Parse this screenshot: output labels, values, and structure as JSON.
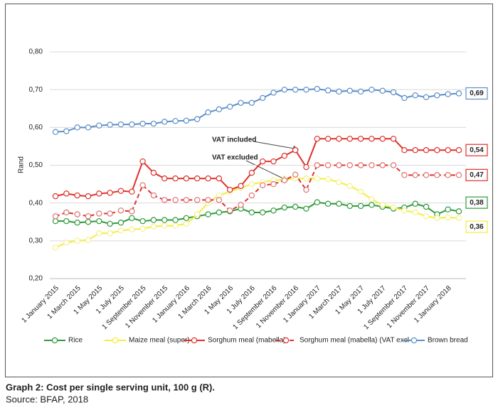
{
  "chart_data": {
    "type": "line",
    "y_label": "Rand",
    "caption": "Graph 2: Cost per single serving unit, 100 g (R).",
    "source": "Source: BFAP, 2018",
    "annotations": [
      "VAT included",
      "VAT excluded"
    ],
    "categories": [
      "1 January 2015",
      null,
      "1 March 2015",
      null,
      "1 May 2015",
      null,
      "1 July 2015",
      null,
      "1 September 2015",
      null,
      "1 November 2015",
      null,
      "1 January 2016",
      null,
      "1 March 2016",
      null,
      "1 May 2016",
      null,
      "1 July 2016",
      null,
      "1 September 2016",
      null,
      "1 November 2016",
      null,
      "1 January 2017",
      null,
      "1 March 2017",
      null,
      "1 May 2017",
      null,
      "1 July 2017",
      null,
      "1 September 2017",
      null,
      "1 November 2017",
      null,
      "1 January 2018",
      null
    ],
    "ylim": [
      0.2,
      0.8
    ],
    "yticks": [
      {
        "value": 0.2,
        "label": "0,20"
      },
      {
        "value": 0.3,
        "label": "0,30"
      },
      {
        "value": 0.4,
        "label": "0,40"
      },
      {
        "value": 0.5,
        "label": "0,50"
      },
      {
        "value": 0.6,
        "label": "0,60"
      },
      {
        "value": 0.7,
        "label": "0,70"
      },
      {
        "value": 0.8,
        "label": "0,80"
      }
    ],
    "grid": true,
    "legend": "bottom",
    "series": [
      {
        "name": "Rice",
        "color": "#2e9a3a",
        "dashed": false,
        "values": [
          0.352,
          0.352,
          0.348,
          0.35,
          0.352,
          0.345,
          0.348,
          0.36,
          0.352,
          0.355,
          0.355,
          0.355,
          0.36,
          0.365,
          0.37,
          0.375,
          0.378,
          0.385,
          0.375,
          0.375,
          0.38,
          0.388,
          0.39,
          0.385,
          0.402,
          0.398,
          0.398,
          0.392,
          0.392,
          0.395,
          0.39,
          0.385,
          0.388,
          0.398,
          0.39,
          0.37,
          0.383,
          0.378
        ],
        "value_labels": [
          null,
          null,
          null,
          null,
          null,
          null,
          null,
          null,
          null,
          null,
          null,
          null,
          null,
          null,
          null,
          null,
          null,
          null,
          null,
          null,
          null,
          null,
          null,
          null,
          null,
          null,
          null,
          null,
          null,
          null,
          null,
          null,
          null,
          null,
          null,
          null,
          null,
          "0,38"
        ]
      },
      {
        "name": "Maize meal (super)",
        "color": "#f2ee3a",
        "dashed": false,
        "values": [
          0.282,
          0.295,
          0.3,
          0.302,
          0.32,
          0.32,
          0.327,
          0.33,
          0.332,
          0.338,
          0.34,
          0.34,
          0.345,
          0.37,
          0.4,
          0.42,
          0.43,
          0.44,
          0.45,
          0.455,
          0.46,
          0.462,
          0.465,
          0.465,
          0.465,
          0.463,
          0.455,
          0.445,
          0.43,
          0.41,
          0.395,
          0.388,
          0.38,
          0.375,
          0.365,
          0.36,
          0.362,
          0.36
        ],
        "value_labels": [
          null,
          null,
          null,
          null,
          null,
          null,
          null,
          null,
          null,
          null,
          null,
          null,
          null,
          null,
          null,
          null,
          null,
          null,
          null,
          null,
          null,
          null,
          null,
          null,
          null,
          null,
          null,
          null,
          null,
          null,
          null,
          null,
          null,
          null,
          null,
          null,
          null,
          "0,36"
        ]
      },
      {
        "name": "Sorghum meal (mabella)",
        "color": "#e0302a",
        "dashed": false,
        "values": [
          0.418,
          0.425,
          0.42,
          0.418,
          0.425,
          0.427,
          0.432,
          0.43,
          0.51,
          0.48,
          0.465,
          0.465,
          0.465,
          0.465,
          0.465,
          0.465,
          0.435,
          0.445,
          0.48,
          0.51,
          0.51,
          0.525,
          0.54,
          0.495,
          0.57,
          0.57,
          0.57,
          0.57,
          0.57,
          0.57,
          0.57,
          0.57,
          0.54,
          0.54,
          0.54,
          0.54,
          0.54,
          0.54
        ],
        "value_labels": [
          null,
          null,
          null,
          null,
          null,
          null,
          null,
          null,
          null,
          null,
          null,
          null,
          null,
          null,
          null,
          null,
          null,
          null,
          null,
          null,
          null,
          null,
          null,
          null,
          null,
          null,
          null,
          null,
          null,
          null,
          null,
          null,
          null,
          null,
          null,
          null,
          null,
          "0,54"
        ]
      },
      {
        "name": "Sorghum meal (mabella) (VAT excl",
        "color": "#e0302a",
        "dashed": true,
        "values": [
          0.365,
          0.375,
          0.37,
          0.365,
          0.372,
          0.372,
          0.38,
          0.378,
          0.447,
          0.42,
          0.408,
          0.408,
          0.408,
          0.408,
          0.408,
          0.408,
          0.38,
          0.395,
          0.42,
          0.447,
          0.45,
          0.46,
          0.475,
          0.435,
          0.5,
          0.5,
          0.5,
          0.5,
          0.5,
          0.5,
          0.5,
          0.5,
          0.474,
          0.474,
          0.474,
          0.474,
          0.474,
          0.474
        ],
        "value_labels": [
          null,
          null,
          null,
          null,
          null,
          null,
          null,
          null,
          null,
          null,
          null,
          null,
          null,
          null,
          null,
          null,
          null,
          null,
          null,
          null,
          null,
          null,
          null,
          null,
          null,
          null,
          null,
          null,
          null,
          null,
          null,
          null,
          null,
          null,
          null,
          null,
          null,
          "0,47"
        ]
      },
      {
        "name": "Brown bread",
        "color": "#5b8fc7",
        "dashed": false,
        "values": [
          0.588,
          0.59,
          0.6,
          0.6,
          0.605,
          0.607,
          0.608,
          0.608,
          0.61,
          0.61,
          0.615,
          0.617,
          0.618,
          0.622,
          0.64,
          0.648,
          0.655,
          0.665,
          0.665,
          0.678,
          0.692,
          0.7,
          0.7,
          0.7,
          0.702,
          0.698,
          0.695,
          0.697,
          0.695,
          0.7,
          0.697,
          0.693,
          0.678,
          0.685,
          0.68,
          0.685,
          0.688,
          0.69
        ],
        "value_labels": [
          null,
          null,
          null,
          null,
          null,
          null,
          null,
          null,
          null,
          null,
          null,
          null,
          null,
          null,
          null,
          null,
          null,
          null,
          null,
          null,
          null,
          null,
          null,
          null,
          null,
          null,
          null,
          null,
          null,
          null,
          null,
          null,
          null,
          null,
          null,
          null,
          null,
          "0,69"
        ]
      }
    ]
  }
}
